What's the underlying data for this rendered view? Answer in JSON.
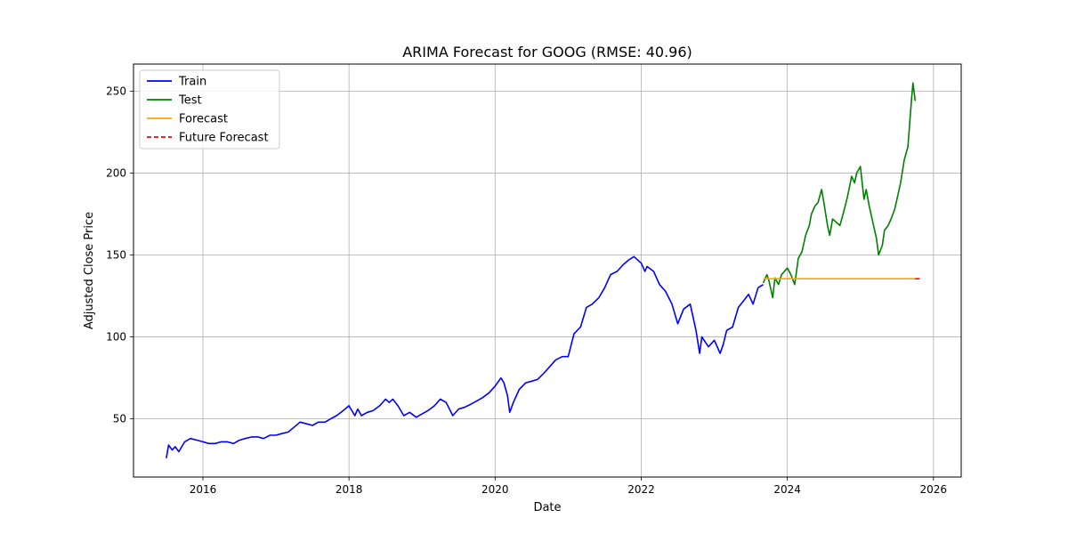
{
  "chart_data": {
    "type": "line",
    "title": "ARIMA Forecast for GOOG (RMSE: 40.96)",
    "xlabel": "Date",
    "ylabel": "Adjusted Close Price",
    "xlim": [
      2015.05,
      2026.38
    ],
    "ylim": [
      14.5,
      266.5
    ],
    "x_ticks": [
      2016,
      2018,
      2020,
      2022,
      2024,
      2026
    ],
    "y_ticks": [
      50,
      100,
      150,
      200,
      250
    ],
    "grid": true,
    "legend_position": "top-left",
    "series": [
      {
        "name": "Train",
        "color": "#0000ff",
        "style": "solid",
        "x": [
          2015.5,
          2015.53,
          2015.58,
          2015.62,
          2015.67,
          2015.75,
          2015.83,
          2015.92,
          2016.0,
          2016.08,
          2016.17,
          2016.25,
          2016.33,
          2016.42,
          2016.5,
          2016.58,
          2016.67,
          2016.75,
          2016.83,
          2016.92,
          2017.0,
          2017.08,
          2017.17,
          2017.25,
          2017.33,
          2017.42,
          2017.5,
          2017.58,
          2017.67,
          2017.75,
          2017.83,
          2017.92,
          2018.0,
          2018.08,
          2018.12,
          2018.17,
          2018.25,
          2018.33,
          2018.42,
          2018.5,
          2018.55,
          2018.6,
          2018.67,
          2018.75,
          2018.83,
          2018.92,
          2019.0,
          2019.08,
          2019.17,
          2019.25,
          2019.33,
          2019.42,
          2019.5,
          2019.58,
          2019.67,
          2019.75,
          2019.83,
          2019.92,
          2020.0,
          2020.08,
          2020.12,
          2020.17,
          2020.2,
          2020.25,
          2020.33,
          2020.42,
          2020.5,
          2020.58,
          2020.67,
          2020.75,
          2020.83,
          2020.92,
          2021.0,
          2021.08,
          2021.17,
          2021.25,
          2021.33,
          2021.42,
          2021.5,
          2021.58,
          2021.67,
          2021.75,
          2021.83,
          2021.9,
          2022.0,
          2022.05,
          2022.08,
          2022.17,
          2022.25,
          2022.33,
          2022.42,
          2022.5,
          2022.58,
          2022.67,
          2022.75,
          2022.8,
          2022.83,
          2022.92,
          2023.0,
          2023.08,
          2023.12,
          2023.17,
          2023.25,
          2023.33,
          2023.4,
          2023.47,
          2023.53,
          2023.6,
          2023.67
        ],
        "y": [
          26,
          34,
          31,
          33,
          30,
          36,
          38,
          37,
          36,
          35,
          35,
          36,
          36,
          35,
          37,
          38,
          39,
          39,
          38,
          40,
          40,
          41,
          42,
          45,
          48,
          47,
          46,
          48,
          48,
          50,
          52,
          55,
          58,
          52,
          56,
          52,
          54,
          55,
          58,
          62,
          60,
          62,
          58,
          52,
          54,
          51,
          53,
          55,
          58,
          62,
          60,
          52,
          56,
          57,
          59,
          61,
          63,
          66,
          70,
          75,
          72,
          64,
          54,
          60,
          68,
          72,
          73,
          74,
          78,
          82,
          86,
          88,
          88,
          102,
          106,
          118,
          120,
          124,
          130,
          138,
          140,
          144,
          147,
          149,
          145,
          140,
          143,
          140,
          132,
          128,
          120,
          108,
          117,
          120,
          104,
          90,
          100,
          94,
          98,
          90,
          95,
          104,
          106,
          118,
          122,
          126,
          120,
          130,
          132
        ]
      },
      {
        "name": "Test",
        "color": "#008000",
        "style": "solid",
        "x": [
          2023.67,
          2023.72,
          2023.75,
          2023.8,
          2023.83,
          2023.88,
          2023.92,
          2024.0,
          2024.05,
          2024.1,
          2024.15,
          2024.2,
          2024.25,
          2024.3,
          2024.33,
          2024.38,
          2024.42,
          2024.47,
          2024.5,
          2024.55,
          2024.58,
          2024.62,
          2024.67,
          2024.72,
          2024.77,
          2024.82,
          2024.88,
          2024.92,
          2024.95,
          2025.0,
          2025.05,
          2025.08,
          2025.12,
          2025.17,
          2025.22,
          2025.25,
          2025.3,
          2025.33,
          2025.38,
          2025.42,
          2025.47,
          2025.5,
          2025.55,
          2025.6,
          2025.65,
          2025.7,
          2025.72,
          2025.75
        ],
        "y": [
          133,
          138,
          134,
          124,
          136,
          132,
          138,
          142,
          138,
          132,
          148,
          152,
          162,
          168,
          175,
          180,
          182,
          190,
          182,
          168,
          162,
          172,
          170,
          168,
          176,
          185,
          198,
          194,
          200,
          204,
          184,
          190,
          180,
          170,
          160,
          150,
          156,
          165,
          168,
          172,
          178,
          184,
          194,
          208,
          216,
          245,
          255,
          244
        ]
      },
      {
        "name": "Forecast",
        "color": "#ffa500",
        "style": "solid",
        "x": [
          2023.67,
          2025.75
        ],
        "y": [
          135.5,
          135.5
        ]
      },
      {
        "name": "Future Forecast",
        "color": "#ff0000",
        "style": "dashed",
        "x": [
          2025.75,
          2025.83
        ],
        "y": [
          135.5,
          135.5
        ]
      }
    ]
  }
}
